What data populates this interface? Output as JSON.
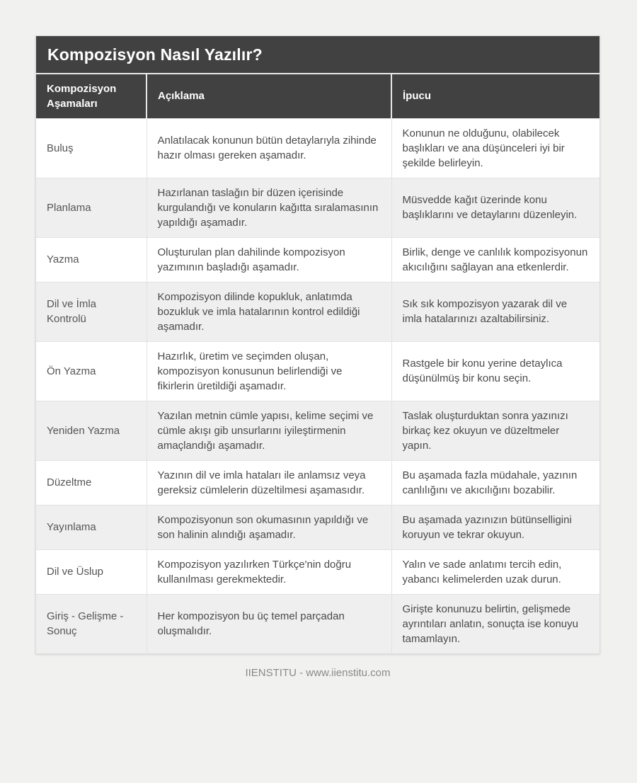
{
  "page": {
    "title": "Kompozisyon Nasıl Yazılır?",
    "footer": "IIENSTITU - www.iienstitu.com"
  },
  "table": {
    "columns": [
      "Kompozisyon Aşamaları",
      "Açıklama",
      "İpucu"
    ],
    "rows": [
      {
        "stage": "Buluş",
        "description": "Anlatılacak konunun bütün detaylarıyla zihinde hazır olması gereken aşamadır.",
        "tip": "Konunun ne olduğunu, olabilecek başlıkları ve ana düşünceleri iyi bir şekilde belirleyin."
      },
      {
        "stage": "Planlama",
        "description": "Hazırlanan taslağın bir düzen içerisinde kurgulandığı ve konuların kağıtta sıralamasının yapıldığı aşamadır.",
        "tip": "Müsvedde kağıt üzerinde konu başlıklarını ve detaylarını düzenleyin."
      },
      {
        "stage": "Yazma",
        "description": "Oluşturulan plan dahilinde kompozisyon yazımının başladığı aşamadır.",
        "tip": "Birlik, denge ve canlılık kompozisyonun akıcılığını sağlayan ana etkenlerdir."
      },
      {
        "stage": "Dil ve İmla Kontrolü",
        "description": "Kompozisyon dilinde kopukluk, anlatımda bozukluk ve imla hatalarının kontrol edildiği aşamadır.",
        "tip": "Sık sık kompozisyon yazarak dil ve imla hatalarınızı azaltabilirsiniz."
      },
      {
        "stage": "Ön Yazma",
        "description": "Hazırlık, üretim ve seçimden oluşan, kompozisyon konusunun belirlendiği ve fikirlerin üretildiği aşamadır.",
        "tip": "Rastgele bir konu yerine detaylıca düşünülmüş bir konu seçin."
      },
      {
        "stage": "Yeniden Yazma",
        "description": "Yazılan metnin cümle yapısı, kelime seçimi ve cümle akışı gib unsurlarını iyileştirmenin amaçlandığı aşamadır.",
        "tip": "Taslak oluşturduktan sonra yazınızı birkaç kez okuyun ve düzeltmeler yapın."
      },
      {
        "stage": "Düzeltme",
        "description": "Yazının dil ve imla hataları ile anlamsız veya gereksiz cümlelerin düzeltilmesi aşamasıdır.",
        "tip": "Bu aşamada fazla müdahale, yazının canlılığını ve akıcılığını bozabilir."
      },
      {
        "stage": "Yayınlama",
        "description": "Kompozisyonun son okumasının yapıldığı ve son halinin alındığı aşamadır.",
        "tip": "Bu aşamada yazınızın bütünselligini koruyun ve tekrar okuyun."
      },
      {
        "stage": "Dil ve Üslup",
        "description": "Kompozisyon yazılırken Türkçe'nin doğru kullanılması gerekmektedir.",
        "tip": "Yalın ve sade anlatımı tercih edin, yabancı kelimelerden uzak durun."
      },
      {
        "stage": "Giriş - Gelişme - Sonuç",
        "description": "Her kompozisyon bu üç temel parçadan oluşmalıdır.",
        "tip": "Girişte konunuzu belirtin, gelişmede ayrıntıları anlatın, sonuçta ise konuyu tamamlayın."
      }
    ]
  },
  "colors": {
    "header_bg": "#414141",
    "header_text": "#ffffff",
    "row_alt_bg": "#efefef",
    "body_text": "#4a4a4a",
    "border": "#e3e3e3",
    "page_bg": "#f1f1ef",
    "footer_text": "#8a8a8a"
  }
}
